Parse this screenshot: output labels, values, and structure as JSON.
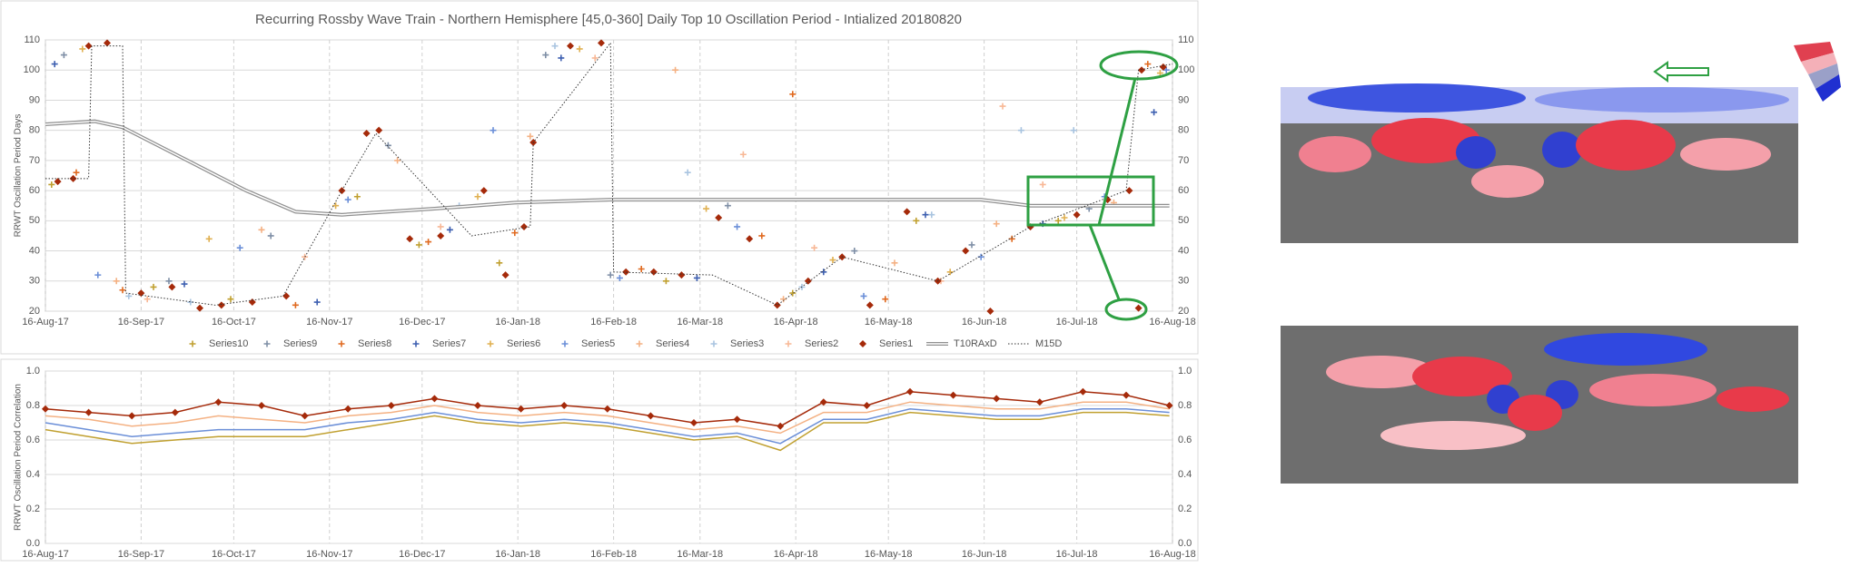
{
  "chart_data": [
    {
      "type": "scatter",
      "title": "Recurring Rossby Wave Train - Northern Hemisphere [45,0-360] Daily Top 10 Oscillation Period - Intialized 20180820",
      "y_label": "RRWT Oscillation Period Days",
      "xlim": [
        "2017-08-16",
        "2018-08-16"
      ],
      "xticks": [
        {
          "value": "2017-08-16",
          "label": "16-Aug-17"
        },
        {
          "value": "2017-09-16",
          "label": "16-Sep-17"
        },
        {
          "value": "2017-10-16",
          "label": "16-Oct-17"
        },
        {
          "value": "2017-11-16",
          "label": "16-Nov-17"
        },
        {
          "value": "2017-12-16",
          "label": "16-Dec-17"
        },
        {
          "value": "2018-01-16",
          "label": "16-Jan-18"
        },
        {
          "value": "2018-02-16",
          "label": "16-Feb-18"
        },
        {
          "value": "2018-03-16",
          "label": "16-Mar-18"
        },
        {
          "value": "2018-04-16",
          "label": "16-Apr-18"
        },
        {
          "value": "2018-05-16",
          "label": "16-May-18"
        },
        {
          "value": "2018-06-16",
          "label": "16-Jun-18"
        },
        {
          "value": "2018-07-16",
          "label": "16-Jul-18"
        },
        {
          "value": "2018-08-16",
          "label": "16-Aug-18"
        }
      ],
      "ylim": [
        20,
        110
      ],
      "yticks": [
        20,
        30,
        40,
        50,
        60,
        70,
        80,
        90,
        100,
        110
      ],
      "grid": true,
      "series": [
        {
          "name": "Series10",
          "color": "#c0a030",
          "marker": "cross",
          "x": [
            "2017-08-18",
            "2017-09-20",
            "2017-10-15",
            "2017-11-25",
            "2017-12-15",
            "2018-01-10",
            "2018-03-05",
            "2018-04-15",
            "2018-05-25",
            "2018-07-10"
          ],
          "values": [
            62,
            28,
            24,
            58,
            42,
            36,
            30,
            26,
            50,
            50
          ]
        },
        {
          "name": "Series9",
          "color": "#7f8fa6",
          "marker": "cross",
          "x": [
            "2017-08-22",
            "2017-09-25",
            "2017-10-28",
            "2017-12-05",
            "2018-01-25",
            "2018-02-15",
            "2018-03-25",
            "2018-05-05",
            "2018-06-12",
            "2018-07-20"
          ],
          "values": [
            105,
            30,
            45,
            75,
            105,
            32,
            55,
            40,
            42,
            54
          ]
        },
        {
          "name": "Series8",
          "color": "#e06a20",
          "marker": "cross",
          "x": [
            "2017-08-26",
            "2017-09-10",
            "2017-11-05",
            "2017-12-18",
            "2018-01-15",
            "2018-02-25",
            "2018-04-05",
            "2018-04-15",
            "2018-05-15",
            "2018-06-25",
            "2018-08-08"
          ],
          "values": [
            66,
            27,
            22,
            43,
            46,
            34,
            45,
            92,
            24,
            44,
            102
          ]
        },
        {
          "name": "Series7",
          "color": "#3d5fb0",
          "marker": "cross",
          "x": [
            "2017-08-19",
            "2017-09-30",
            "2017-11-12",
            "2017-12-25",
            "2018-01-30",
            "2018-03-15",
            "2018-04-25",
            "2018-05-28",
            "2018-07-05",
            "2018-08-10"
          ],
          "values": [
            102,
            29,
            23,
            47,
            104,
            31,
            33,
            52,
            49,
            86
          ]
        },
        {
          "name": "Series6",
          "color": "#e0b050",
          "marker": "cross",
          "x": [
            "2017-08-28",
            "2017-10-08",
            "2017-11-18",
            "2018-01-03",
            "2018-02-05",
            "2018-03-18",
            "2018-04-28",
            "2018-06-05",
            "2018-07-12",
            "2018-08-12"
          ],
          "values": [
            107,
            44,
            55,
            58,
            107,
            54,
            37,
            33,
            51,
            99
          ]
        },
        {
          "name": "Series5",
          "color": "#6b8fd8",
          "marker": "cross",
          "x": [
            "2017-09-02",
            "2017-10-18",
            "2017-11-22",
            "2018-01-08",
            "2018-02-18",
            "2018-03-28",
            "2018-05-08",
            "2018-06-15",
            "2018-07-25",
            "2018-08-14"
          ],
          "values": [
            32,
            41,
            57,
            80,
            31,
            48,
            25,
            38,
            58,
            100
          ]
        },
        {
          "name": "Series4",
          "color": "#f4b183",
          "marker": "cross",
          "x": [
            "2017-09-08",
            "2017-10-25",
            "2017-12-08",
            "2018-01-20",
            "2018-03-08",
            "2018-04-12",
            "2018-05-18",
            "2018-06-20",
            "2018-07-28"
          ],
          "values": [
            30,
            47,
            70,
            78,
            100,
            24,
            36,
            49,
            56
          ]
        },
        {
          "name": "Series3",
          "color": "#a9c4e0",
          "marker": "cross",
          "x": [
            "2017-09-12",
            "2017-10-02",
            "2017-12-28",
            "2018-01-28",
            "2018-03-12",
            "2018-04-18",
            "2018-05-30",
            "2018-06-28",
            "2018-07-15"
          ],
          "values": [
            25,
            23,
            55,
            108,
            66,
            28,
            52,
            80,
            80
          ]
        },
        {
          "name": "Series2",
          "color": "#f8b896",
          "marker": "cross",
          "x": [
            "2017-09-18",
            "2017-11-08",
            "2017-12-22",
            "2018-02-10",
            "2018-03-30",
            "2018-04-22",
            "2018-06-02",
            "2018-06-22",
            "2018-07-05"
          ],
          "values": [
            24,
            38,
            48,
            104,
            72,
            41,
            30,
            88,
            62
          ]
        },
        {
          "name": "Series1",
          "color": "#a52a0a",
          "marker": "diamond",
          "x": [
            "2017-08-20",
            "2017-08-25",
            "2017-08-30",
            "2017-09-05",
            "2017-09-16",
            "2017-09-26",
            "2017-10-05",
            "2017-10-12",
            "2017-10-22",
            "2017-11-02",
            "2017-11-20",
            "2017-11-28",
            "2017-12-02",
            "2017-12-12",
            "2017-12-22",
            "2018-01-05",
            "2018-01-12",
            "2018-01-18",
            "2018-01-21",
            "2018-02-02",
            "2018-02-12",
            "2018-02-20",
            "2018-03-01",
            "2018-03-10",
            "2018-03-22",
            "2018-04-01",
            "2018-04-10",
            "2018-04-20",
            "2018-05-01",
            "2018-05-10",
            "2018-05-22",
            "2018-06-01",
            "2018-06-10",
            "2018-06-18",
            "2018-07-01",
            "2018-07-16",
            "2018-07-26",
            "2018-08-02",
            "2018-08-05",
            "2018-08-06",
            "2018-08-13"
          ],
          "values": [
            63,
            64,
            108,
            109,
            26,
            28,
            21,
            22,
            23,
            25,
            60,
            79,
            80,
            44,
            45,
            60,
            32,
            48,
            76,
            108,
            109,
            33,
            33,
            32,
            51,
            44,
            22,
            30,
            38,
            22,
            53,
            30,
            40,
            20,
            48,
            52,
            57,
            60,
            21,
            100,
            101
          ]
        },
        {
          "name": "T10RAxD",
          "color": "#909090",
          "marker": "double-line",
          "x": [
            "2017-08-16",
            "2017-09-01",
            "2017-09-10",
            "2017-10-01",
            "2017-10-20",
            "2017-11-05",
            "2017-11-20",
            "2017-12-20",
            "2018-01-15",
            "2018-02-15",
            "2018-06-15",
            "2018-07-01",
            "2018-08-15"
          ],
          "values": [
            82,
            83,
            81,
            70,
            60,
            53,
            52,
            54,
            56,
            57,
            57,
            55,
            55
          ]
        },
        {
          "name": "M15D",
          "color": "#333333",
          "marker": "dotted-line",
          "x": [
            "2017-08-16",
            "2017-08-30",
            "2017-08-31",
            "2017-09-10",
            "2017-09-11",
            "2017-10-10",
            "2017-11-01",
            "2017-11-20",
            "2017-12-01",
            "2018-01-01",
            "2018-01-20",
            "2018-01-21",
            "2018-02-15",
            "2018-02-16",
            "2018-03-20",
            "2018-04-10",
            "2018-05-01",
            "2018-06-01",
            "2018-07-01",
            "2018-08-01",
            "2018-08-05",
            "2018-08-16"
          ],
          "values": [
            64,
            64,
            108,
            108,
            26,
            22,
            25,
            60,
            79,
            45,
            48,
            76,
            109,
            33,
            32,
            22,
            38,
            30,
            48,
            60,
            100,
            102
          ]
        }
      ]
    },
    {
      "type": "line",
      "y_label": "RRWT Oscillation Period Correlation",
      "xlim": [
        "2017-08-16",
        "2018-08-16"
      ],
      "xticks": [
        {
          "value": "2017-08-16",
          "label": "16-Aug-17"
        },
        {
          "value": "2017-09-16",
          "label": "16-Sep-17"
        },
        {
          "value": "2017-10-16",
          "label": "16-Oct-17"
        },
        {
          "value": "2017-11-16",
          "label": "16-Nov-17"
        },
        {
          "value": "2017-12-16",
          "label": "16-Dec-17"
        },
        {
          "value": "2018-01-16",
          "label": "16-Jan-18"
        },
        {
          "value": "2018-02-16",
          "label": "16-Feb-18"
        },
        {
          "value": "2018-03-16",
          "label": "16-Mar-18"
        },
        {
          "value": "2018-04-16",
          "label": "16-Apr-18"
        },
        {
          "value": "2018-05-16",
          "label": "16-May-18"
        },
        {
          "value": "2018-06-16",
          "label": "16-Jun-18"
        },
        {
          "value": "2018-07-16",
          "label": "16-Jul-18"
        },
        {
          "value": "2018-08-16",
          "label": "16-Aug-18"
        }
      ],
      "ylim": [
        0,
        1
      ],
      "yticks": [
        {
          "value": 0,
          "label": "0.0"
        },
        0.2,
        0.4,
        0.6,
        0.8,
        {
          "value": 1,
          "label": "1.0"
        }
      ],
      "grid": true,
      "x": [
        "2017-08-16",
        "2017-08-30",
        "2017-09-13",
        "2017-09-27",
        "2017-10-11",
        "2017-10-25",
        "2017-11-08",
        "2017-11-22",
        "2017-12-06",
        "2017-12-20",
        "2018-01-03",
        "2018-01-17",
        "2018-01-31",
        "2018-02-14",
        "2018-02-28",
        "2018-03-14",
        "2018-03-28",
        "2018-04-11",
        "2018-04-25",
        "2018-05-09",
        "2018-05-23",
        "2018-06-06",
        "2018-06-20",
        "2018-07-04",
        "2018-07-18",
        "2018-08-01",
        "2018-08-15"
      ],
      "series": [
        {
          "color": "#c0a030",
          "values": [
            0.66,
            0.62,
            0.58,
            0.6,
            0.62,
            0.62,
            0.62,
            0.66,
            0.7,
            0.74,
            0.7,
            0.68,
            0.7,
            0.68,
            0.64,
            0.6,
            0.62,
            0.54,
            0.7,
            0.7,
            0.76,
            0.74,
            0.72,
            0.72,
            0.76,
            0.76,
            0.74
          ]
        },
        {
          "color": "#6b8fd8",
          "values": [
            0.7,
            0.66,
            0.62,
            0.64,
            0.66,
            0.66,
            0.66,
            0.7,
            0.72,
            0.76,
            0.72,
            0.7,
            0.72,
            0.7,
            0.66,
            0.62,
            0.64,
            0.58,
            0.72,
            0.72,
            0.78,
            0.76,
            0.74,
            0.74,
            0.78,
            0.78,
            0.76
          ]
        },
        {
          "color": "#f4b183",
          "values": [
            0.74,
            0.72,
            0.68,
            0.7,
            0.74,
            0.72,
            0.7,
            0.74,
            0.76,
            0.8,
            0.76,
            0.74,
            0.76,
            0.74,
            0.7,
            0.66,
            0.68,
            0.64,
            0.76,
            0.76,
            0.82,
            0.8,
            0.78,
            0.78,
            0.82,
            0.82,
            0.78
          ]
        },
        {
          "color": "#a52a0a",
          "marker": "diamond",
          "values": [
            0.78,
            0.76,
            0.74,
            0.76,
            0.82,
            0.8,
            0.74,
            0.78,
            0.8,
            0.84,
            0.8,
            0.78,
            0.8,
            0.78,
            0.74,
            0.7,
            0.72,
            0.68,
            0.82,
            0.8,
            0.88,
            0.86,
            0.84,
            0.82,
            0.88,
            0.86,
            0.8
          ]
        }
      ]
    }
  ]
}
